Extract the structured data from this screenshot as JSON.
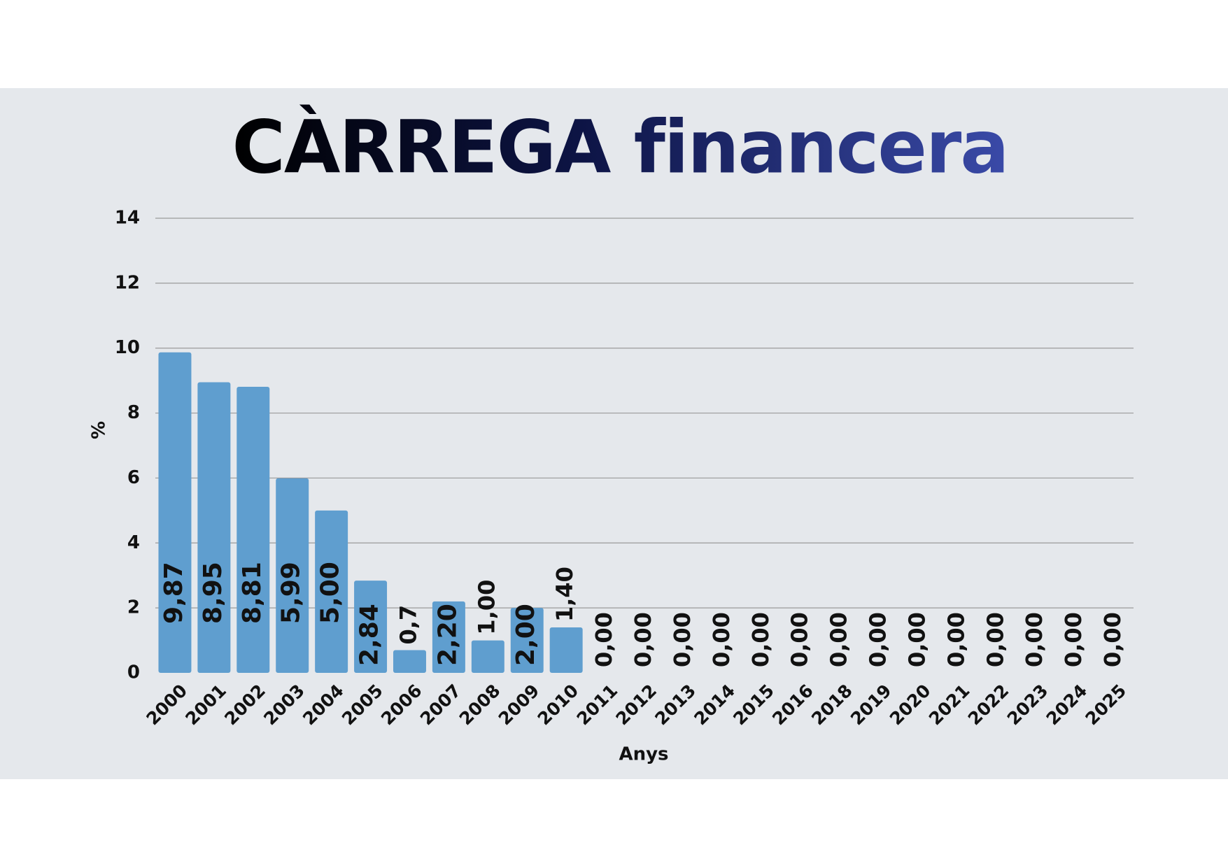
{
  "chart_data": {
    "type": "bar",
    "title": "CÀRREGA financera",
    "categories": [
      "2000",
      "2001",
      "2002",
      "2003",
      "2004",
      "2005",
      "2006",
      "2007",
      "2008",
      "2009",
      "2010",
      "2011",
      "2012",
      "2013",
      "2014",
      "2015",
      "2016",
      "2018",
      "2019",
      "2020",
      "2021",
      "2022",
      "2023",
      "2024",
      "2025"
    ],
    "values": [
      9.87,
      8.95,
      8.81,
      5.99,
      5.0,
      2.84,
      0.7,
      2.2,
      1.0,
      2.0,
      1.4,
      0,
      0,
      0,
      0,
      0,
      0,
      0,
      0,
      0,
      0,
      0,
      0,
      0,
      0
    ],
    "value_labels": [
      "9,87",
      "8,95",
      "8,81",
      "5,99",
      "5,00",
      "2,84",
      "0,7",
      "2,20",
      "1,00",
      "2,00",
      "1,40",
      "0,00",
      "0,00",
      "0,00",
      "0,00",
      "0,00",
      "0,00",
      "0,00",
      "0,00",
      "0,00",
      "0,00",
      "0,00",
      "0,00",
      "0,00",
      "0,00"
    ],
    "color": "#5f9ecf",
    "x_label": "Anys",
    "y_label": "%",
    "ylim": [
      0,
      14
    ],
    "yticks": [
      0,
      2,
      4,
      6,
      8,
      10,
      12,
      14
    ],
    "grid": true
  }
}
